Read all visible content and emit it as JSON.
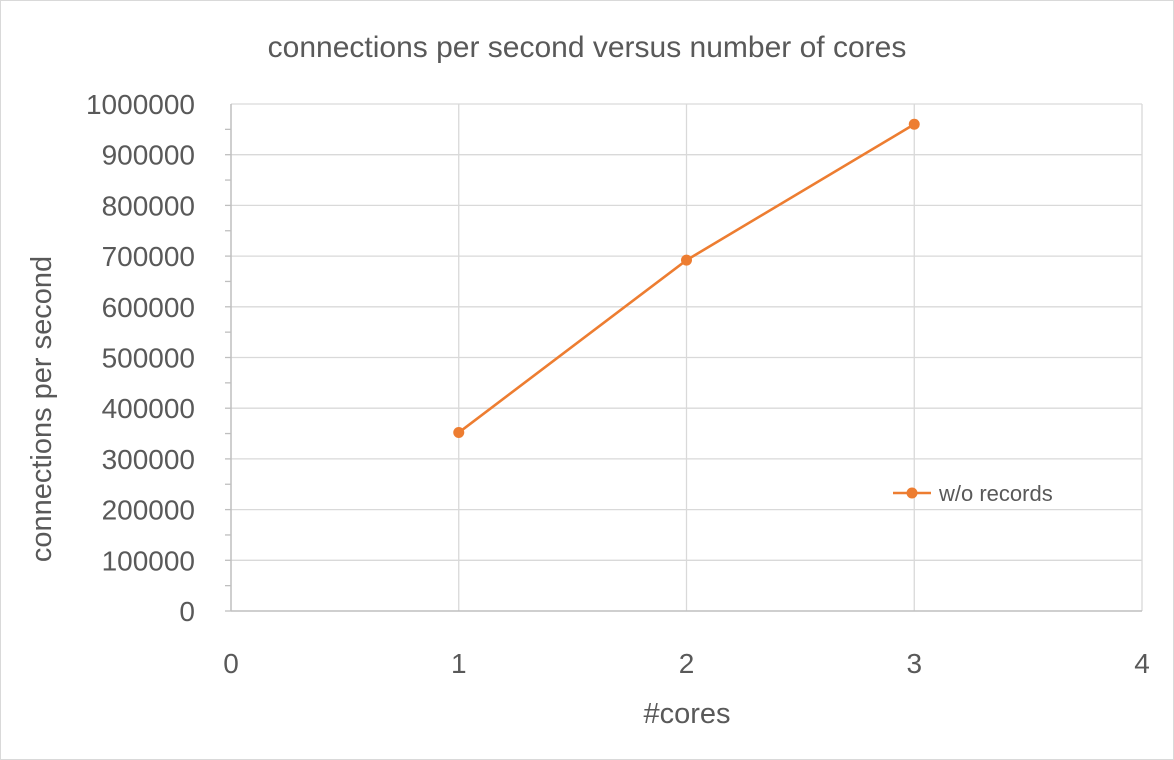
{
  "chart_data": {
    "type": "scatter",
    "title": "connections per second versus number of cores",
    "xlabel": "#cores",
    "ylabel": "connections per second",
    "xlim": [
      0,
      4
    ],
    "ylim": [
      0,
      1000000
    ],
    "x_ticks": [
      0,
      1,
      2,
      3,
      4
    ],
    "y_ticks": [
      0,
      100000,
      200000,
      300000,
      400000,
      500000,
      600000,
      700000,
      800000,
      900000,
      1000000
    ],
    "x_tick_labels": [
      "0",
      "1",
      "2",
      "3",
      "4"
    ],
    "y_tick_labels": [
      "0",
      "100000",
      "200000",
      "300000",
      "400000",
      "500000",
      "600000",
      "700000",
      "800000",
      "900000",
      "1000000"
    ],
    "grid": "major",
    "series": [
      {
        "name": "w/o records",
        "color": "#ED7D31",
        "style": "line-with-markers",
        "x": [
          1,
          2,
          3
        ],
        "y": [
          352000,
          692000,
          960000
        ]
      }
    ],
    "legend": {
      "position": "inside-right",
      "entries": [
        "w/o records"
      ]
    }
  }
}
